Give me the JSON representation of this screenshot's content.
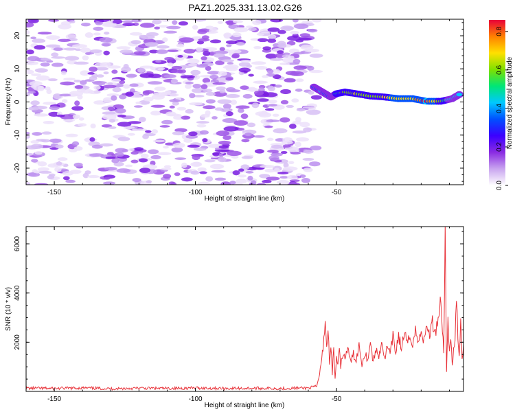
{
  "title": "PAZ1.2025.331.13.02.G26",
  "chart_data": [
    {
      "type": "heatmap",
      "xlabel": "Height of straight line (km)",
      "ylabel": "Frequency (Hz)",
      "xlim": [
        -160,
        -5
      ],
      "ylim": [
        -25,
        25
      ],
      "xticks": [
        -150,
        -100,
        -50
      ],
      "yticks": [
        -20,
        -10,
        0,
        10,
        20
      ],
      "colorbar": {
        "label": "Normalized spectral amplitude",
        "range": [
          0.0,
          0.86
        ],
        "ticks": [
          "0.0",
          "0.2",
          "0.4",
          "0.6",
          "0.8"
        ],
        "colors": [
          "#ffffff",
          "#c9a5ef",
          "#8a2be2",
          "#3b00ff",
          "#0050ff",
          "#00c8ff",
          "#00e676",
          "#7fe000",
          "#ffe000",
          "#ff8000",
          "#e8003a"
        ]
      },
      "noise_region": {
        "x": [
          -160,
          -57
        ],
        "f": [
          -25,
          25
        ],
        "amplitude_range": [
          0.0,
          0.25
        ]
      },
      "signal_track": [
        {
          "x": -58,
          "f": 4.5,
          "amp": 0.35
        },
        {
          "x": -55,
          "f": 3.0,
          "amp": 0.4
        },
        {
          "x": -52,
          "f": 1.5,
          "amp": 0.3
        },
        {
          "x": -50,
          "f": 2.5,
          "amp": 0.5
        },
        {
          "x": -47,
          "f": 3.0,
          "amp": 0.6
        },
        {
          "x": -43,
          "f": 2.5,
          "amp": 0.65
        },
        {
          "x": -38,
          "f": 1.8,
          "amp": 0.6
        },
        {
          "x": -33,
          "f": 1.5,
          "amp": 0.65
        },
        {
          "x": -28,
          "f": 1.0,
          "amp": 0.7
        },
        {
          "x": -23,
          "f": 1.0,
          "amp": 0.68
        },
        {
          "x": -18,
          "f": 0.2,
          "amp": 0.86
        },
        {
          "x": -13,
          "f": 0.2,
          "amp": 0.6
        },
        {
          "x": -9,
          "f": 1.0,
          "amp": 0.4
        },
        {
          "x": -6,
          "f": 2.5,
          "amp": 0.4
        }
      ]
    },
    {
      "type": "line",
      "xlabel": "Height of straight line (km)",
      "ylabel": "SNR (10 * v/v)",
      "xlim": [
        -160,
        -5
      ],
      "ylim": [
        0,
        6700
      ],
      "xticks": [
        -150,
        -100,
        -50
      ],
      "yticks": [
        2000,
        4000,
        6000
      ],
      "color": "#e8333a",
      "series": [
        {
          "x": [
            -160,
            -150,
            -140,
            -130,
            -120,
            -110,
            -100,
            -90,
            -80,
            -70,
            -60,
            -57,
            -56,
            -55,
            -54.5,
            -54,
            -53.5,
            -53,
            -52.5,
            -52,
            -51.5,
            -51,
            -50.5,
            -50,
            -49.5,
            -49,
            -48.5,
            -48,
            -47,
            -46,
            -45,
            -44,
            -43,
            -42,
            -41,
            -40,
            -39,
            -38,
            -37,
            -36,
            -35,
            -34,
            -33,
            -32,
            -31,
            -30,
            -29,
            -28,
            -27,
            -26,
            -25,
            -24,
            -23,
            -22,
            -21,
            -20,
            -19,
            -18,
            -17,
            -16,
            -15,
            -14,
            -13,
            -12,
            -11.5,
            -11,
            -10.5,
            -10,
            -9.5,
            -9,
            -8.5,
            -8,
            -7.5,
            -7,
            -6.5,
            -6,
            -5.5,
            -5
          ],
          "y": [
            130,
            120,
            140,
            110,
            130,
            120,
            140,
            120,
            130,
            120,
            140,
            200,
            700,
            1500,
            2200,
            2900,
            1800,
            2500,
            1200,
            2000,
            700,
            1700,
            500,
            1400,
            1000,
            1700,
            900,
            1500,
            1400,
            1700,
            1200,
            1500,
            1300,
            1900,
            1100,
            1600,
            1300,
            2000,
            1200,
            1700,
            1400,
            2100,
            1300,
            1800,
            1500,
            2200,
            1600,
            2300,
            1700,
            2400,
            1900,
            2200,
            2000,
            2500,
            1900,
            2600,
            2000,
            2700,
            2300,
            2800,
            2400,
            3000,
            3800,
            1500,
            6700,
            900,
            2800,
            1500,
            2200,
            1200,
            1600,
            1900,
            3800,
            2200,
            1500,
            2800,
            1400,
            1900
          ]
        }
      ]
    }
  ]
}
